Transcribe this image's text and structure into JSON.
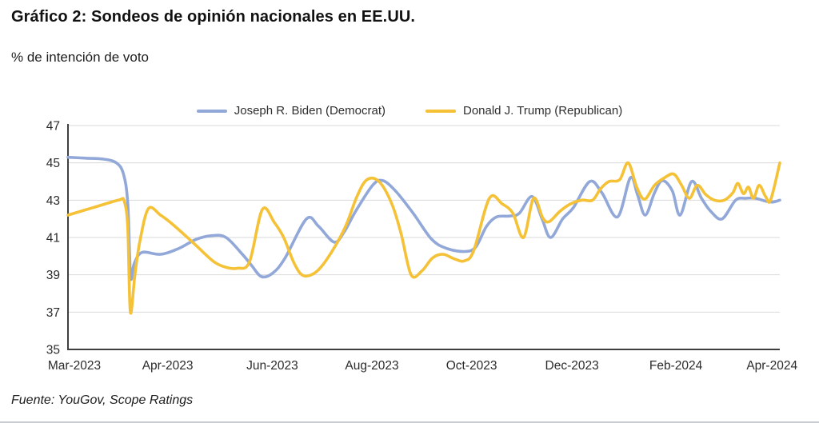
{
  "header": {
    "title": "Gráfico 2: Sondeos de opinión nacionales en EE.UU.",
    "subtitle": "% de intención de voto"
  },
  "footer": {
    "source": "Fuente: YouGov, Scope Ratings"
  },
  "colors": {
    "biden_line": "#92A8D9",
    "trump_line": "#F5C136",
    "gridline": "#d9d9d9",
    "axis": "#3f3f3f",
    "tick_text": "#2b2b2b"
  },
  "chart_data": {
    "type": "line",
    "title": "Sondeos de opinión nacionales en EE.UU.",
    "ylabel": "% de intención de voto",
    "ylim": [
      35,
      47
    ],
    "y_tick_labels": [
      "47",
      "45",
      "43",
      "41",
      "39",
      "37",
      "35"
    ],
    "y_tick_values": [
      47,
      45,
      43,
      41,
      39,
      37,
      35
    ],
    "x_tick_labels": [
      "Mar-2023",
      "Apr-2023",
      "Jun-2023",
      "Aug-2023",
      "Oct-2023",
      "Dec-2023",
      "Feb-2024",
      "Apr-2024"
    ],
    "x_tick_positions": [
      0.009,
      0.14,
      0.287,
      0.427,
      0.567,
      0.708,
      0.854,
      0.989
    ],
    "grid": "horizontal",
    "legend_position": "top-center",
    "series": [
      {
        "name": "Joseph R. Biden (Democrat)",
        "color": "#92A8D9",
        "points": [
          [
            0.0,
            45.3
          ],
          [
            0.025,
            45.25
          ],
          [
            0.05,
            45.2
          ],
          [
            0.068,
            45.0
          ],
          [
            0.078,
            44.4
          ],
          [
            0.084,
            42.8
          ],
          [
            0.088,
            38.9
          ],
          [
            0.093,
            39.6
          ],
          [
            0.104,
            40.2
          ],
          [
            0.13,
            40.1
          ],
          [
            0.155,
            40.4
          ],
          [
            0.18,
            40.9
          ],
          [
            0.202,
            41.1
          ],
          [
            0.222,
            41.0
          ],
          [
            0.245,
            40.1
          ],
          [
            0.258,
            39.5
          ],
          [
            0.272,
            38.9
          ],
          [
            0.288,
            39.1
          ],
          [
            0.305,
            39.9
          ],
          [
            0.335,
            42.0
          ],
          [
            0.352,
            41.6
          ],
          [
            0.374,
            40.75
          ],
          [
            0.388,
            41.3
          ],
          [
            0.404,
            42.4
          ],
          [
            0.428,
            43.8
          ],
          [
            0.442,
            44.05
          ],
          [
            0.46,
            43.5
          ],
          [
            0.485,
            42.3
          ],
          [
            0.511,
            40.9
          ],
          [
            0.533,
            40.4
          ],
          [
            0.558,
            40.25
          ],
          [
            0.573,
            40.5
          ],
          [
            0.588,
            41.6
          ],
          [
            0.602,
            42.1
          ],
          [
            0.62,
            42.15
          ],
          [
            0.634,
            42.3
          ],
          [
            0.652,
            43.2
          ],
          [
            0.666,
            42.0
          ],
          [
            0.678,
            41.0
          ],
          [
            0.695,
            42.0
          ],
          [
            0.71,
            42.6
          ],
          [
            0.733,
            44.0
          ],
          [
            0.75,
            43.4
          ],
          [
            0.772,
            42.1
          ],
          [
            0.79,
            44.2
          ],
          [
            0.8,
            43.3
          ],
          [
            0.811,
            42.2
          ],
          [
            0.824,
            43.4
          ],
          [
            0.835,
            44.05
          ],
          [
            0.849,
            43.5
          ],
          [
            0.86,
            42.2
          ],
          [
            0.876,
            44.0
          ],
          [
            0.89,
            43.1
          ],
          [
            0.903,
            42.4
          ],
          [
            0.919,
            42.0
          ],
          [
            0.938,
            43.0
          ],
          [
            0.952,
            43.1
          ],
          [
            0.966,
            43.1
          ],
          [
            0.98,
            42.95
          ],
          [
            0.99,
            42.9
          ],
          [
            1.0,
            43.0
          ]
        ]
      },
      {
        "name": "Donald J. Trump (Republican)",
        "color": "#F5C136",
        "points": [
          [
            0.0,
            42.2
          ],
          [
            0.035,
            42.6
          ],
          [
            0.071,
            43.0
          ],
          [
            0.079,
            42.95
          ],
          [
            0.084,
            41.5
          ],
          [
            0.0876,
            37.0
          ],
          [
            0.094,
            39.0
          ],
          [
            0.101,
            40.8
          ],
          [
            0.113,
            42.55
          ],
          [
            0.13,
            42.2
          ],
          [
            0.144,
            41.8
          ],
          [
            0.165,
            41.1
          ],
          [
            0.182,
            40.5
          ],
          [
            0.205,
            39.7
          ],
          [
            0.222,
            39.4
          ],
          [
            0.238,
            39.35
          ],
          [
            0.255,
            39.7
          ],
          [
            0.273,
            42.5
          ],
          [
            0.29,
            41.8
          ],
          [
            0.303,
            41.0
          ],
          [
            0.318,
            39.6
          ],
          [
            0.331,
            38.95
          ],
          [
            0.35,
            39.2
          ],
          [
            0.37,
            40.2
          ],
          [
            0.39,
            41.6
          ],
          [
            0.406,
            43.2
          ],
          [
            0.42,
            44.1
          ],
          [
            0.437,
            44.0
          ],
          [
            0.455,
            42.8
          ],
          [
            0.468,
            41.2
          ],
          [
            0.482,
            39.0
          ],
          [
            0.497,
            39.2
          ],
          [
            0.512,
            39.9
          ],
          [
            0.527,
            40.1
          ],
          [
            0.543,
            39.85
          ],
          [
            0.557,
            39.75
          ],
          [
            0.57,
            40.3
          ],
          [
            0.592,
            43.1
          ],
          [
            0.61,
            42.8
          ],
          [
            0.625,
            42.3
          ],
          [
            0.64,
            41.0
          ],
          [
            0.654,
            43.1
          ],
          [
            0.667,
            42.05
          ],
          [
            0.676,
            41.85
          ],
          [
            0.691,
            42.4
          ],
          [
            0.706,
            42.8
          ],
          [
            0.722,
            43.0
          ],
          [
            0.737,
            43.0
          ],
          [
            0.748,
            43.6
          ],
          [
            0.76,
            44.0
          ],
          [
            0.775,
            44.1
          ],
          [
            0.787,
            45.0
          ],
          [
            0.799,
            43.7
          ],
          [
            0.81,
            43.05
          ],
          [
            0.824,
            43.8
          ],
          [
            0.838,
            44.2
          ],
          [
            0.851,
            44.4
          ],
          [
            0.862,
            43.8
          ],
          [
            0.873,
            43.1
          ],
          [
            0.884,
            43.8
          ],
          [
            0.896,
            43.3
          ],
          [
            0.908,
            43.0
          ],
          [
            0.922,
            43.0
          ],
          [
            0.934,
            43.4
          ],
          [
            0.941,
            43.9
          ],
          [
            0.949,
            43.35
          ],
          [
            0.956,
            43.7
          ],
          [
            0.963,
            43.1
          ],
          [
            0.971,
            43.8
          ],
          [
            0.98,
            43.2
          ],
          [
            0.987,
            43.0
          ],
          [
            1.0,
            45.0
          ]
        ]
      }
    ]
  }
}
